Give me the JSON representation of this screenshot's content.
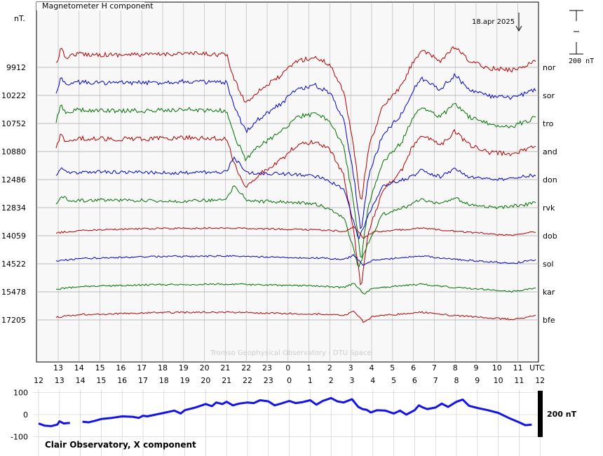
{
  "chart_data": [
    {
      "type": "line",
      "title": "Magnetometer H component",
      "date_label": "18.apr 2025",
      "ylabel": "nT.",
      "scale_bar_label": "200 nT",
      "watermark": "Tromso Geophysical Observatory - DTU Space",
      "x_tick_labels": [
        "13",
        "14",
        "15",
        "16",
        "17",
        "18",
        "19",
        "20",
        "21",
        "22",
        "23",
        "0",
        "1",
        "2",
        "3",
        "4",
        "5",
        "6",
        "7",
        "8",
        "9",
        "10",
        "11",
        "UTC"
      ],
      "grid": true,
      "colors": {
        "red": "#b00000",
        "blue": "#0000c8",
        "green": "#007000"
      },
      "stations": [
        {
          "code": "nor",
          "baseline": "9912",
          "color": "red",
          "profile": "high"
        },
        {
          "code": "sor",
          "baseline": "10222",
          "color": "blue",
          "profile": "high"
        },
        {
          "code": "tro",
          "baseline": "10752",
          "color": "green",
          "profile": "high"
        },
        {
          "code": "and",
          "baseline": "10880",
          "color": "red",
          "profile": "high"
        },
        {
          "code": "don",
          "baseline": "12486",
          "color": "blue",
          "profile": "mid"
        },
        {
          "code": "rvk",
          "baseline": "12834",
          "color": "green",
          "profile": "mid"
        },
        {
          "code": "dob",
          "baseline": "14059",
          "color": "red",
          "profile": "low"
        },
        {
          "code": "sol",
          "baseline": "14522",
          "color": "blue",
          "profile": "low"
        },
        {
          "code": "kar",
          "baseline": "15478",
          "color": "green",
          "profile": "low"
        },
        {
          "code": "bfe",
          "baseline": "17205",
          "color": "red",
          "profile": "low"
        }
      ]
    },
    {
      "type": "line",
      "title": "Clair Observatory, X component",
      "x_tick_labels": [
        "12",
        "13",
        "14",
        "15",
        "16",
        "17",
        "18",
        "19",
        "20",
        "21",
        "22",
        "23",
        "0",
        "1",
        "2",
        "3",
        "4",
        "5",
        "6",
        "7",
        "8",
        "9",
        "10",
        "11",
        "12"
      ],
      "y_ticks": [
        100,
        0,
        -100
      ],
      "ylim": [
        -115,
        115
      ],
      "scale_bar_label": "200 nT",
      "series": [
        {
          "color": "#1414e6",
          "segments": [
            {
              "x": [
                12.0,
                12.3,
                12.6,
                12.9,
                13.0,
                13.2,
                13.4,
                13.5
              ],
              "y": [
                -40,
                -50,
                -52,
                -45,
                -30,
                -40,
                -38,
                -38
              ]
            },
            {
              "x": [
                14.1,
                14.4,
                14.7,
                15.0,
                15.5,
                16.0,
                16.5,
                16.8,
                17.0,
                17.2,
                17.5,
                18.0,
                18.5,
                18.8,
                19.0,
                19.5,
                20.0,
                20.3,
                20.5,
                20.8,
                21.0,
                21.3,
                21.6,
                22.0,
                22.3,
                22.6,
                23.0,
                23.3,
                23.6,
                24.0,
                24.3,
                24.6,
                25.0,
                25.3,
                25.6,
                26.0,
                26.3,
                26.6,
                27.0,
                27.3,
                27.5,
                27.7,
                27.9,
                28.2,
                28.6,
                29.0,
                29.3,
                29.6,
                30.0,
                30.2,
                30.4,
                30.6,
                31.0,
                31.3,
                31.6,
                32.0,
                32.3,
                32.6,
                33.0,
                33.5,
                34.0,
                34.5,
                35.0,
                35.3,
                35.6
              ],
              "y": [
                -32,
                -35,
                -28,
                -20,
                -15,
                -8,
                -10,
                -15,
                -5,
                -8,
                -2,
                8,
                18,
                5,
                20,
                32,
                48,
                38,
                55,
                48,
                58,
                42,
                50,
                55,
                52,
                65,
                60,
                42,
                50,
                62,
                52,
                56,
                65,
                45,
                62,
                75,
                60,
                55,
                70,
                35,
                25,
                22,
                10,
                20,
                18,
                5,
                18,
                0,
                20,
                42,
                32,
                25,
                32,
                50,
                35,
                58,
                68,
                40,
                30,
                20,
                8,
                -15,
                -35,
                -48,
                -45
              ]
            }
          ]
        }
      ]
    }
  ]
}
